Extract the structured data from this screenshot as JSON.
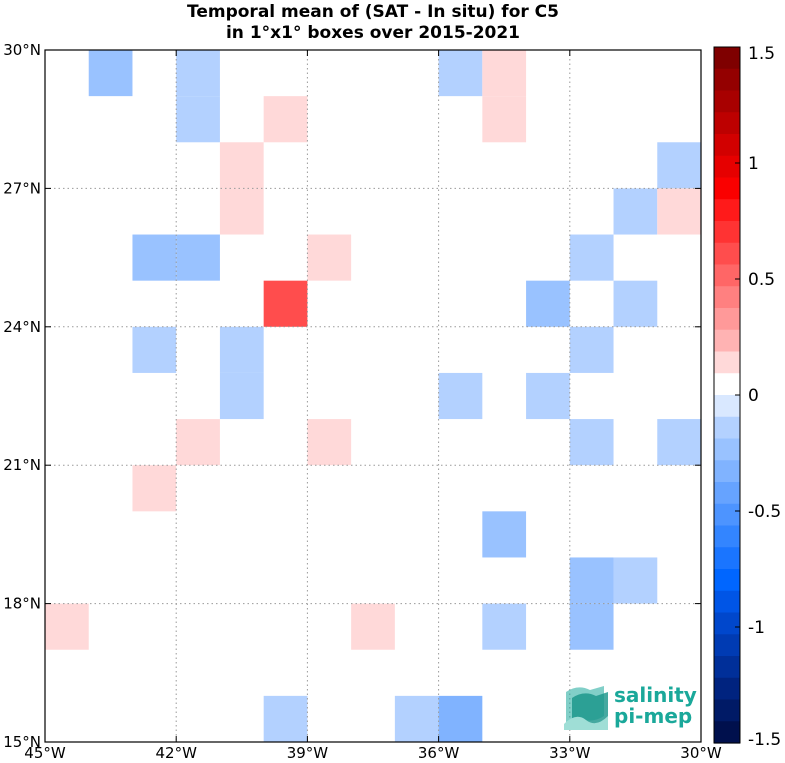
{
  "chart_data": {
    "type": "heatmap",
    "title_lines": [
      "Temporal mean of (SAT - In situ) for C5",
      "in 1°x1° boxes over 2015-2021"
    ],
    "xlim": [
      -45,
      -30
    ],
    "ylim": [
      15,
      30
    ],
    "grid": true,
    "x_ticks": [
      {
        "value": -45,
        "label": "45°W"
      },
      {
        "value": -42,
        "label": "42°W"
      },
      {
        "value": -39,
        "label": "39°W"
      },
      {
        "value": -36,
        "label": "36°W"
      },
      {
        "value": -33,
        "label": "33°W"
      },
      {
        "value": -30,
        "label": "30°W"
      }
    ],
    "y_ticks": [
      {
        "value": 15,
        "label": "15°N"
      },
      {
        "value": 18,
        "label": "18°N"
      },
      {
        "value": 21,
        "label": "21°N"
      },
      {
        "value": 24,
        "label": "24°N"
      },
      {
        "value": 27,
        "label": "27°N"
      },
      {
        "value": 30,
        "label": "30°N"
      }
    ],
    "colorbar": {
      "range": [
        -1.5,
        1.5
      ],
      "ticks": [
        {
          "value": 1.5,
          "label": "1.5"
        },
        {
          "value": 1,
          "label": "1"
        },
        {
          "value": 0.5,
          "label": "0.5"
        },
        {
          "value": 0,
          "label": "0"
        },
        {
          "value": -0.5,
          "label": "-0.5"
        },
        {
          "value": -1,
          "label": "-1"
        },
        {
          "value": -1.5,
          "label": "-1.5"
        }
      ],
      "colors": [
        "#7f0000",
        "#940000",
        "#a80000",
        "#bd0000",
        "#d20000",
        "#e60000",
        "#fa0000",
        "#ff1a1a",
        "#ff3333",
        "#ff4d4d",
        "#ff6666",
        "#ff8080",
        "#ff9999",
        "#ffb3b3",
        "#ffd9d9",
        "#ffffff",
        "#d9e8ff",
        "#b3d1ff",
        "#99c2ff",
        "#80b3ff",
        "#66a3ff",
        "#4d94ff",
        "#3385ff",
        "#1a75ff",
        "#0066ff",
        "#0055e6",
        "#0047cc",
        "#003bb3",
        "#002f99",
        "#00237f",
        "#001a66",
        "#00104d"
      ]
    },
    "cells": [
      {
        "lon": -44,
        "lat": 29,
        "value": -0.25
      },
      {
        "lon": -42,
        "lat": 29,
        "value": -0.12
      },
      {
        "lon": -42,
        "lat": 28,
        "value": -0.12
      },
      {
        "lon": -36,
        "lat": 29,
        "value": -0.12
      },
      {
        "lon": -35,
        "lat": 29,
        "value": 0.12
      },
      {
        "lon": -35,
        "lat": 28,
        "value": 0.12
      },
      {
        "lon": -40,
        "lat": 28,
        "value": 0.12
      },
      {
        "lon": -41,
        "lat": 27,
        "value": 0.12
      },
      {
        "lon": -41,
        "lat": 26,
        "value": 0.12
      },
      {
        "lon": -31,
        "lat": 27,
        "value": -0.12
      },
      {
        "lon": -32,
        "lat": 26,
        "value": -0.12
      },
      {
        "lon": -31,
        "lat": 26,
        "value": 0.18
      },
      {
        "lon": -43,
        "lat": 25,
        "value": -0.25
      },
      {
        "lon": -42,
        "lat": 25,
        "value": -0.25
      },
      {
        "lon": -39,
        "lat": 25,
        "value": 0.12
      },
      {
        "lon": -33,
        "lat": 25,
        "value": -0.12
      },
      {
        "lon": -40,
        "lat": 24,
        "value": 0.62
      },
      {
        "lon": -34,
        "lat": 24,
        "value": -0.25
      },
      {
        "lon": -32,
        "lat": 24,
        "value": -0.12
      },
      {
        "lon": -43,
        "lat": 23,
        "value": -0.12
      },
      {
        "lon": -41,
        "lat": 23,
        "value": -0.12
      },
      {
        "lon": -41,
        "lat": 22,
        "value": -0.12
      },
      {
        "lon": -33,
        "lat": 23,
        "value": -0.12
      },
      {
        "lon": -36,
        "lat": 22,
        "value": -0.12
      },
      {
        "lon": -34,
        "lat": 22,
        "value": -0.12
      },
      {
        "lon": -42,
        "lat": 21,
        "value": 0.12
      },
      {
        "lon": -39,
        "lat": 21,
        "value": 0.12
      },
      {
        "lon": -33,
        "lat": 21,
        "value": -0.12
      },
      {
        "lon": -31,
        "lat": 21,
        "value": -0.12
      },
      {
        "lon": -43,
        "lat": 20,
        "value": 0.12
      },
      {
        "lon": -35,
        "lat": 19,
        "value": -0.25
      },
      {
        "lon": -33,
        "lat": 18,
        "value": -0.25
      },
      {
        "lon": -32,
        "lat": 18,
        "value": -0.12
      },
      {
        "lon": -45,
        "lat": 17,
        "value": 0.12
      },
      {
        "lon": -38,
        "lat": 17,
        "value": 0.12
      },
      {
        "lon": -35,
        "lat": 17,
        "value": -0.12
      },
      {
        "lon": -33,
        "lat": 17,
        "value": -0.25
      },
      {
        "lon": -40,
        "lat": 15,
        "value": -0.12
      },
      {
        "lon": -37,
        "lat": 15,
        "value": -0.12
      },
      {
        "lon": -36,
        "lat": 15,
        "value": -0.35
      }
    ]
  },
  "logo": {
    "line1": "salinity",
    "line2": "pi-mep",
    "color": "#1aa89a"
  }
}
